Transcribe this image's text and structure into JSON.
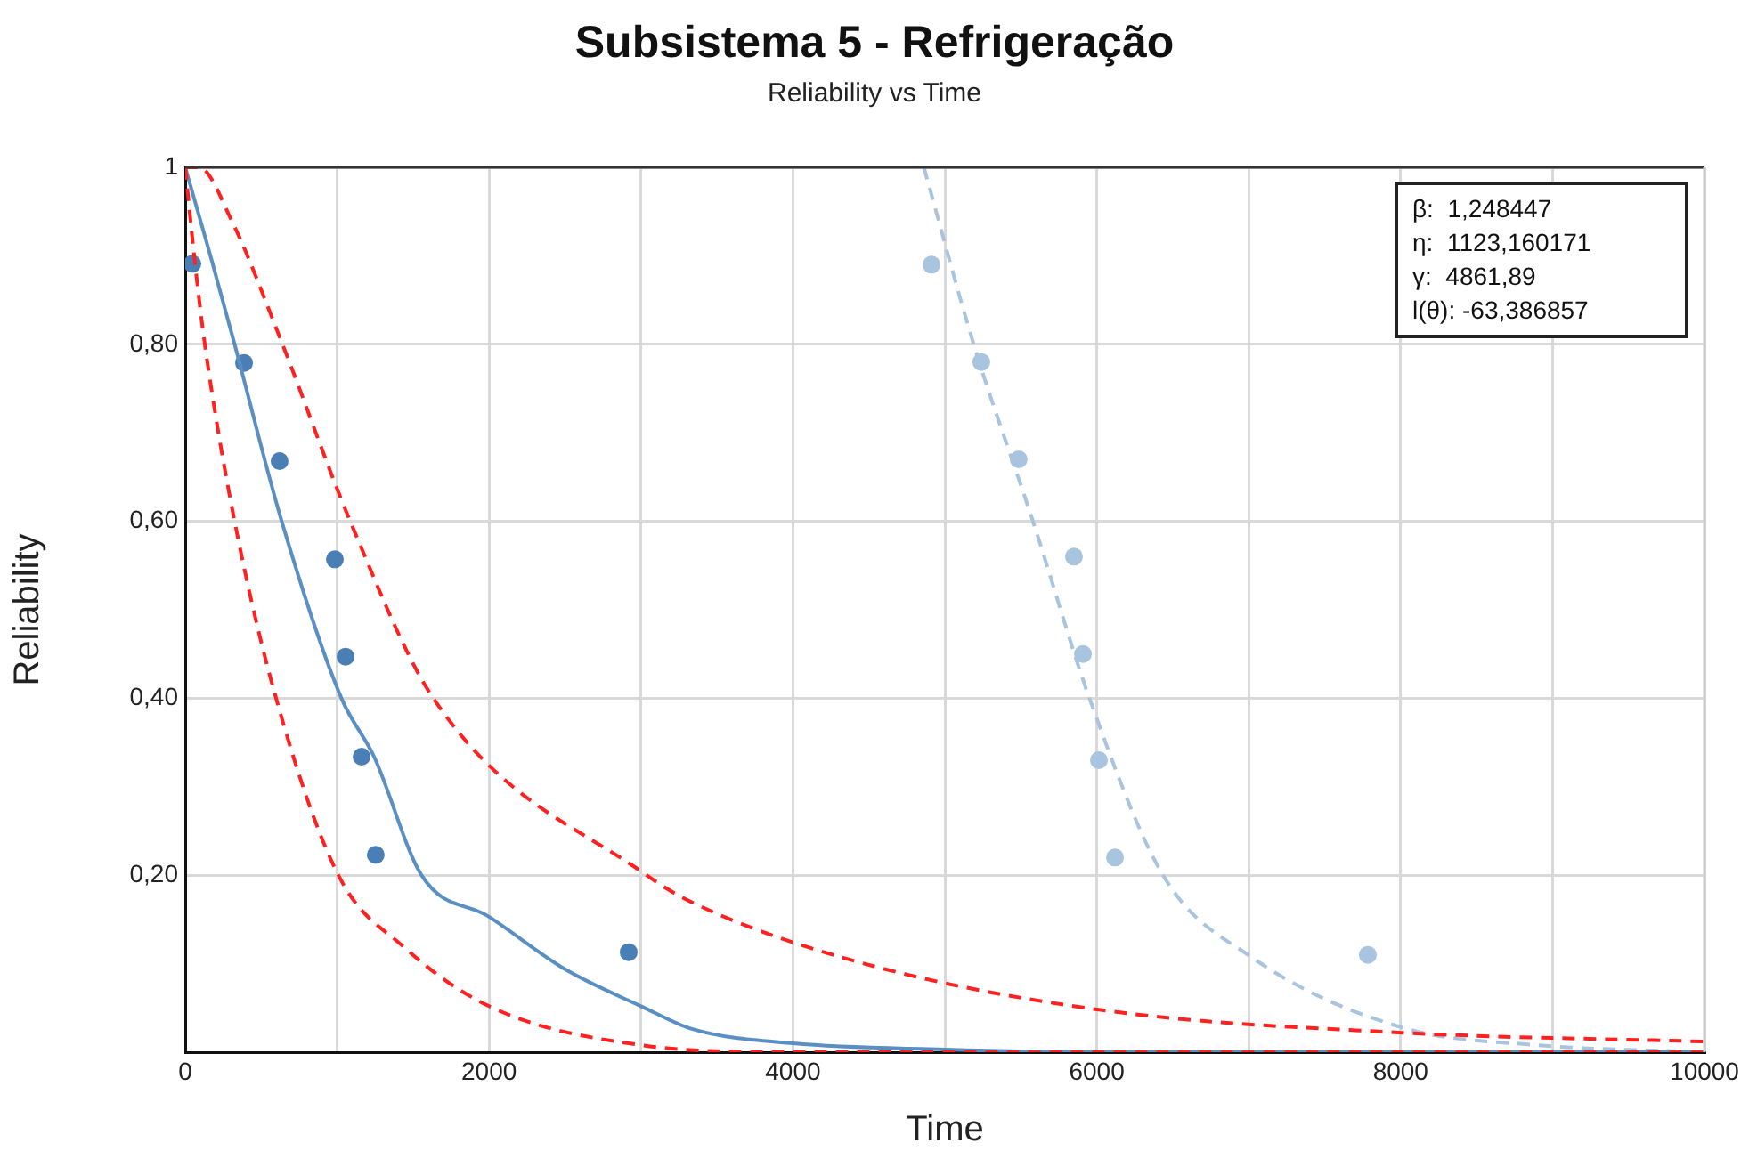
{
  "chart_data": {
    "type": "line",
    "title": "Subsistema 5 - Refrigeração",
    "subtitle": "Reliability vs Time",
    "xlabel": "Time",
    "ylabel": "Reliability",
    "xlim": [
      0,
      10000
    ],
    "xticks": [
      0,
      {
        "value": 1000,
        "label": null
      },
      2000,
      {
        "value": 3000,
        "label": null
      },
      4000,
      {
        "value": 5000,
        "label": null
      },
      6000,
      {
        "value": 7000,
        "label": null
      },
      8000,
      {
        "value": 9000,
        "label": null
      },
      10000
    ],
    "ylim": [
      0,
      1
    ],
    "yticks": [
      {
        "value": 0,
        "label": null
      },
      {
        "value": 0.2,
        "label": "0,20"
      },
      {
        "value": 0.4,
        "label": "0,40"
      },
      {
        "value": 0.6,
        "label": "0,60"
      },
      {
        "value": 0.8,
        "label": "0,80"
      },
      1
    ],
    "grid": true,
    "legend": false,
    "annotations": [
      "β:  1,248447",
      "η:  1123,160171",
      "γ:  4861,89",
      "l(θ): -63,386857"
    ],
    "series": [
      {
        "type": "line",
        "color": "#ff2020",
        "line_style": "dashed",
        "marker": "none",
        "x": [
          0,
          90,
          305,
          640,
          1086,
          1633,
          3037,
          3340,
          4408,
          6014,
          8007,
          10000
        ],
        "values": [
          1,
          1,
          0.94,
          0.8,
          0.6,
          0.4,
          0.2,
          0.169,
          0.103,
          0.048,
          0.022,
          0.012
        ]
      },
      {
        "type": "line",
        "color": "#ff2020",
        "line_style": "dashed",
        "marker": "none",
        "x": [
          0,
          59,
          129,
          325,
          598,
          1008,
          1438,
          2000,
          3000,
          4000,
          10000
        ],
        "values": [
          1,
          0.9,
          0.8,
          0.6,
          0.4,
          0.2,
          0.119,
          0.052,
          0.008,
          0,
          0
        ]
      },
      {
        "type": "line",
        "color": "#5a8fc3",
        "line_style": "solid",
        "marker": "none",
        "x": [
          0,
          166,
          325,
          635,
          1028,
          1243,
          1555,
          2000,
          2508,
          3000,
          3340,
          4000,
          5000,
          6000,
          10000
        ],
        "values": [
          1,
          0.9,
          0.8,
          0.6,
          0.4,
          0.334,
          0.2,
          0.153,
          0.093,
          0.052,
          0.026,
          0.01,
          0.003,
          0,
          0
        ]
      },
      {
        "type": "scatter",
        "color": "#4a7fb5",
        "marker": "circle",
        "x": [
          47,
          387,
          621,
          985,
          1055,
          1161,
          1254,
          2919
        ],
        "values": [
          0.891,
          0.779,
          0.668,
          0.557,
          0.447,
          0.334,
          0.223,
          0.113
        ]
      },
      {
        "type": "line",
        "color": "#a9c4de",
        "line_style": "dashed",
        "marker": "none",
        "x": [
          4862,
          5190,
          5580,
          5952,
          6436,
          7022,
          8007,
          8898,
          10000
        ],
        "values": [
          1,
          0.8,
          0.6,
          0.4,
          0.2,
          0.107,
          0.028,
          0.008,
          0
        ]
      },
      {
        "type": "scatter",
        "color": "#a9c4de",
        "marker": "circle",
        "x": [
          4912,
          5240,
          5486,
          5850,
          5909,
          6014,
          6120,
          7784
        ],
        "values": [
          0.89,
          0.78,
          0.67,
          0.56,
          0.45,
          0.33,
          0.22,
          0.11
        ]
      }
    ]
  }
}
